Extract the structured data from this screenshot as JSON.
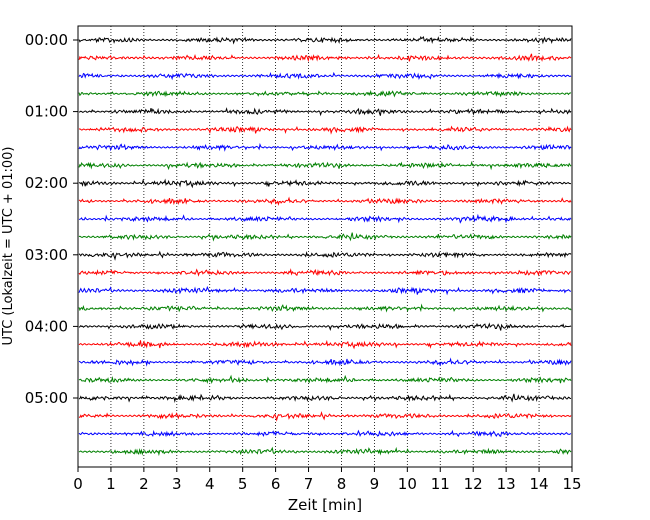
{
  "chart_data": {
    "type": "line",
    "title": "",
    "xlabel": "Zeit  [min]",
    "ylabel": "UTC (Lokalzeit = UTC + 01:00)",
    "xlim": [
      0,
      15
    ],
    "x_ticks": [
      0,
      1,
      2,
      3,
      4,
      5,
      6,
      7,
      8,
      9,
      10,
      11,
      12,
      13,
      14,
      15
    ],
    "x_tick_labels": [
      "0",
      "1",
      "2",
      "3",
      "4",
      "5",
      "6",
      "7",
      "8",
      "9",
      "10",
      "11",
      "12",
      "13",
      "14",
      "15"
    ],
    "y_tick_labels": [
      "00:00",
      "01:00",
      "02:00",
      "03:00",
      "04:00",
      "05:00"
    ],
    "grid": "vertical dotted",
    "trace_start_minutes": [
      0,
      15,
      30,
      45,
      60,
      75,
      90,
      105,
      120,
      135,
      150,
      165,
      180,
      195,
      210,
      225,
      240,
      255,
      270,
      285,
      300,
      315,
      330,
      345
    ],
    "trace_colors": [
      "#000000",
      "#ff0000",
      "#0000ff",
      "#008000"
    ]
  }
}
